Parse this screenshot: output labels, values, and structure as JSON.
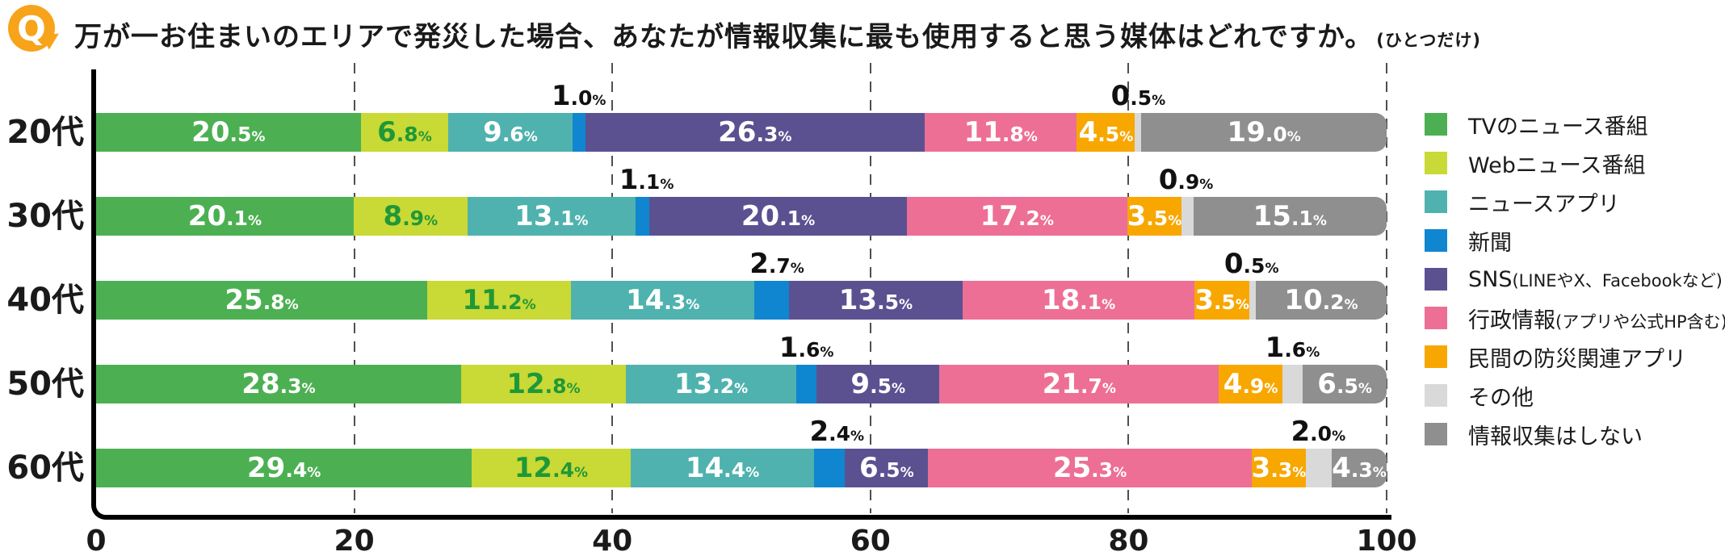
{
  "header": {
    "q_label": "Q",
    "title": "万が一お住まいのエリアで発災した場合、あなたが情報収集に最も使用すると思う媒体はどれですか。",
    "note": "(ひとつだけ)"
  },
  "chart_data": {
    "type": "bar",
    "orientation": "horizontal",
    "stacked": true,
    "unit": "%",
    "categories": [
      "20代",
      "30代",
      "40代",
      "50代",
      "60代"
    ],
    "series": [
      {
        "name": "TVのニュース番組",
        "note": "",
        "color": "#4cb052",
        "label_color": "#ffffff",
        "label_position": "inside",
        "values": [
          20.5,
          20.1,
          25.8,
          28.3,
          29.4
        ]
      },
      {
        "name": "Webニュース番組",
        "note": "",
        "color": "#c9d935",
        "label_color": "#1f9838",
        "label_position": "inside",
        "values": [
          6.8,
          8.9,
          11.2,
          12.8,
          12.4
        ]
      },
      {
        "name": "ニュースアプリ",
        "note": "",
        "color": "#4fb2ae",
        "label_color": "#ffffff",
        "label_position": "inside",
        "values": [
          9.6,
          13.1,
          14.3,
          13.2,
          14.4
        ]
      },
      {
        "name": "新聞",
        "note": "",
        "color": "#0f86cf",
        "label_color": "#111111",
        "label_position": "above",
        "values": [
          1.0,
          1.1,
          2.7,
          1.6,
          2.4
        ]
      },
      {
        "name": "SNS",
        "note": "(LINEやX、Facebookなど)",
        "color": "#5b5191",
        "label_color": "#ffffff",
        "label_position": "inside",
        "values": [
          26.3,
          20.1,
          13.5,
          9.5,
          6.5
        ]
      },
      {
        "name": "行政情報",
        "note": "(アプリや公式HP含む)",
        "color": "#ed6f96",
        "label_color": "#ffffff",
        "label_position": "inside",
        "values": [
          11.8,
          17.2,
          18.1,
          21.7,
          25.3
        ]
      },
      {
        "name": "民間の防災関連アプリ",
        "note": "",
        "color": "#f7a700",
        "label_color": "#ffffff",
        "label_position": "inside",
        "values": [
          4.5,
          3.5,
          3.5,
          4.9,
          3.3
        ]
      },
      {
        "name": "その他",
        "note": "",
        "color": "#d9d9d9",
        "label_color": "#111111",
        "label_position": "above",
        "values": [
          0.5,
          0.9,
          0.5,
          1.6,
          2.0
        ]
      },
      {
        "name": "情報収集はしない",
        "note": "",
        "color": "#8f8f8f",
        "label_color": "#ffffff",
        "label_position": "inside",
        "values": [
          19.0,
          15.1,
          10.2,
          6.5,
          4.3
        ]
      }
    ],
    "xlim": [
      0,
      100
    ],
    "xticks": [
      0,
      20,
      40,
      60,
      80,
      100
    ],
    "grid": "dashed-vertical",
    "legend_position": "right",
    "colors": {
      "q_badge": "#f7a41b",
      "axis": "#000000",
      "gridline": "#4f4f4f"
    }
  }
}
